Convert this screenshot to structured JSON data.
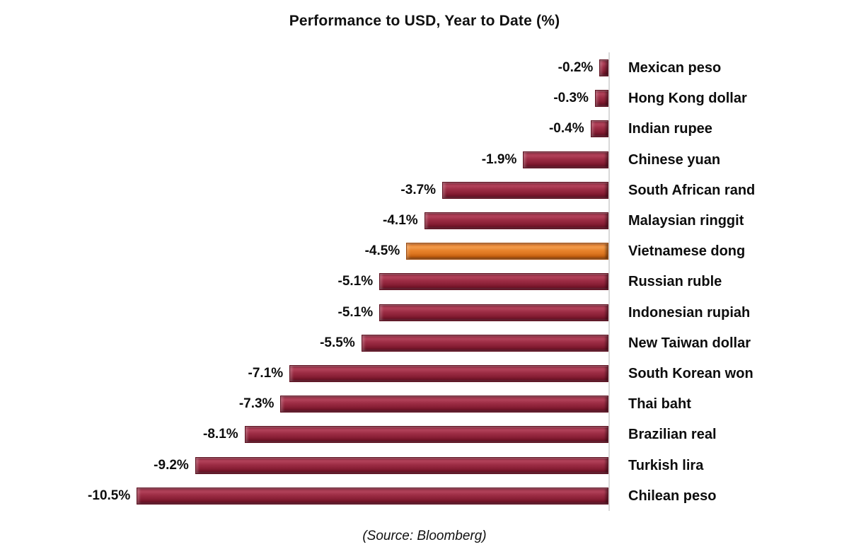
{
  "header": {
    "title": "Performance to USD, Year to Date (%)"
  },
  "footer": {
    "source": "(Source: Bloomberg)"
  },
  "chart_data": {
    "type": "bar",
    "orientation": "horizontal",
    "title": "Performance to USD, Year to Date (%)",
    "xlabel": "",
    "ylabel": "",
    "unit": "%",
    "xlim": [
      -10.5,
      0
    ],
    "grid": false,
    "legend": false,
    "categories": [
      "Mexican peso",
      "Hong Kong dollar",
      "Indian rupee",
      "Chinese yuan",
      "South African rand",
      "Malaysian ringgit",
      "Vietnamese dong",
      "Russian ruble",
      "Indonesian rupiah",
      "New Taiwan dollar",
      "South Korean won",
      "Thai baht",
      "Brazilian real",
      "Turkish lira",
      "Chilean peso"
    ],
    "values": [
      -0.2,
      -0.3,
      -0.4,
      -1.9,
      -3.7,
      -4.1,
      -4.5,
      -5.1,
      -5.1,
      -5.5,
      -7.1,
      -7.3,
      -8.1,
      -9.2,
      -10.5
    ],
    "value_labels": [
      "-0.2%",
      "-0.3%",
      "-0.4%",
      "-1.9%",
      "-3.7%",
      "-4.1%",
      "-4.5%",
      "-5.1%",
      "-5.1%",
      "-5.5%",
      "-7.1%",
      "-7.3%",
      "-8.1%",
      "-9.2%",
      "-10.5%"
    ],
    "highlight_index": 6,
    "bar_color": "#8E2238",
    "highlight_color": "#E8832C",
    "axis_color": "#D9D9D9",
    "label_color": "#0D0D0D"
  }
}
